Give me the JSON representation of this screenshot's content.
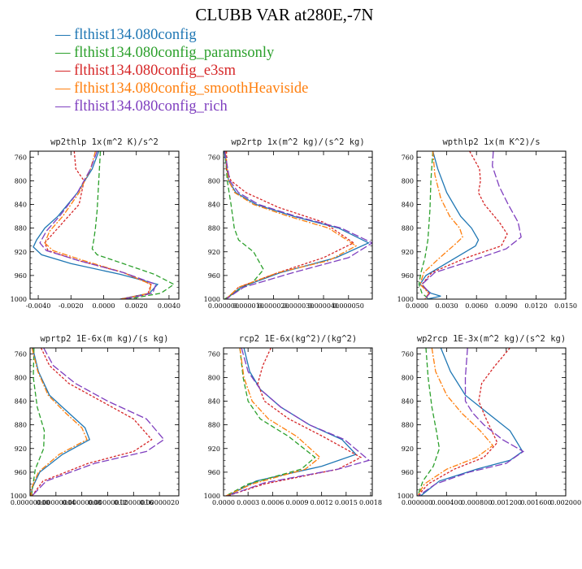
{
  "figure": {
    "title": "CLUBB VAR at280E,-7N"
  },
  "legend": [
    {
      "label": "flthist134.080config",
      "color": "#1f77b4"
    },
    {
      "label": "flthist134.080config_paramsonly",
      "color": "#2ca02c"
    },
    {
      "label": "flthist134.080config_e3sm",
      "color": "#d62728"
    },
    {
      "label": "flthist134.080config_smoothHeaviside",
      "color": "#ff7f0e"
    },
    {
      "label": "flthist134.080config_rich",
      "color": "#7f3fbf"
    }
  ],
  "chart_data": [
    {
      "type": "line",
      "title": "wp2thlp  1x(m^2 K)/s^2",
      "xlim": [
        -0.0045,
        0.0046
      ],
      "ylim": [
        1000,
        750
      ],
      "xticks": [
        -0.004,
        -0.002,
        0.0,
        0.002,
        0.004
      ],
      "xtick_labels": [
        "-0.0040",
        "-0.0020",
        "0.0000",
        "0.0020",
        "0.0040"
      ],
      "yticks": [
        760,
        800,
        840,
        880,
        920,
        960,
        1000
      ],
      "series": [
        {
          "name": "flthist134.080config",
          "x": [
            -0.0003,
            -0.0007,
            -0.0016,
            -0.0028,
            -0.0036,
            -0.0041,
            -0.0043,
            -0.0038,
            -0.002,
            0.001,
            0.0033,
            0.0028,
            0.001
          ],
          "y": [
            750,
            780,
            820,
            860,
            880,
            900,
            912,
            925,
            940,
            958,
            975,
            990,
            1000
          ]
        },
        {
          "name": "flthist134.080config_paramsonly",
          "x": [
            -0.0002,
            -0.0003,
            -0.0004,
            -0.0005,
            -0.0006,
            -0.0007,
            -0.0004,
            0.0012,
            0.0031,
            0.0043,
            0.0035,
            0.0015
          ],
          "y": [
            750,
            800,
            850,
            880,
            900,
            915,
            925,
            940,
            958,
            975,
            990,
            1000
          ]
        },
        {
          "name": "flthist134.080config_e3sm",
          "x": [
            -0.0018,
            -0.0017,
            -0.0012,
            -0.0015,
            -0.0028,
            -0.0036,
            -0.0034,
            -0.0015,
            0.0012,
            0.0029,
            0.0027,
            0.001
          ],
          "y": [
            750,
            780,
            800,
            840,
            880,
            905,
            918,
            935,
            955,
            975,
            992,
            1000
          ]
        },
        {
          "name": "flthist134.080config_smoothHeaviside",
          "x": [
            -0.0005,
            -0.0008,
            -0.0015,
            -0.0025,
            -0.0033,
            -0.0036,
            -0.0031,
            -0.0012,
            0.0012,
            0.0029,
            0.0028,
            0.0011
          ],
          "y": [
            750,
            780,
            820,
            860,
            885,
            905,
            918,
            935,
            955,
            975,
            990,
            1000
          ]
        },
        {
          "name": "flthist134.080config_rich",
          "x": [
            -0.0004,
            -0.0008,
            -0.0016,
            -0.0027,
            -0.0035,
            -0.0039,
            -0.0035,
            -0.0015,
            0.0012,
            0.0032,
            0.003,
            0.0012
          ],
          "y": [
            750,
            780,
            820,
            860,
            885,
            905,
            918,
            935,
            955,
            975,
            990,
            1000
          ]
        }
      ]
    },
    {
      "type": "line",
      "title": "wp2rtp  1x(m^2 kg)/(s^2 kg)",
      "xlim": [
        0,
        5.95e-05
      ],
      "ylim": [
        1000,
        750
      ],
      "xticks": [
        0,
        1e-05,
        2e-05,
        3e-05,
        4e-05,
        5e-05
      ],
      "xtick_labels": [
        "0.000000",
        "0.000010",
        "0.000020",
        "0.000030",
        "0.000040",
        "0.000050"
      ],
      "yticks": [
        760,
        800,
        840,
        880,
        920,
        960,
        1000
      ],
      "series": [
        {
          "name": "flthist134.080config",
          "x": [
            3e-07,
            2e-06,
            5e-06,
            1.3e-05,
            2.8e-05,
            4.6e-05,
            5.8e-05,
            4.5e-05,
            2.3e-05,
            7e-06,
            1e-06
          ],
          "y": [
            750,
            800,
            820,
            840,
            860,
            880,
            905,
            930,
            955,
            980,
            1000
          ]
        },
        {
          "name": "flthist134.080config_paramsonly",
          "x": [
            6e-07,
            1.5e-06,
            3e-06,
            4.3e-06,
            6e-06,
            1.2e-05,
            1.6e-05,
            1.2e-05,
            6e-06,
            2e-06,
            5e-07
          ],
          "y": [
            750,
            800,
            840,
            880,
            900,
            920,
            950,
            970,
            985,
            995,
            1000
          ]
        },
        {
          "name": "flthist134.080config_e3sm",
          "x": [
            1.2e-06,
            1.1e-06,
            3e-06,
            9e-06,
            2.2e-05,
            4e-05,
            5.2e-05,
            4e-05,
            2.2e-05,
            6e-06,
            1e-06
          ],
          "y": [
            750,
            780,
            800,
            820,
            845,
            870,
            905,
            930,
            955,
            980,
            1000
          ]
        },
        {
          "name": "flthist134.080config_smoothHeaviside",
          "x": [
            7e-07,
            2e-06,
            4.5e-06,
            1.2e-05,
            2.6e-05,
            4.2e-05,
            5.3e-05,
            4.2e-05,
            2.2e-05,
            6e-06,
            1e-06
          ],
          "y": [
            750,
            800,
            820,
            840,
            860,
            880,
            910,
            935,
            955,
            980,
            1000
          ]
        },
        {
          "name": "flthist134.080config_rich",
          "x": [
            5e-07,
            2.5e-06,
            6e-06,
            1.4e-05,
            2.9e-05,
            4.7e-05,
            5.95e-05,
            5e-05,
            2.8e-05,
            8e-06,
            1e-06
          ],
          "y": [
            750,
            800,
            820,
            840,
            860,
            880,
            905,
            930,
            955,
            980,
            1000
          ]
        }
      ]
    },
    {
      "type": "line",
      "title": "wpthlp2  1x(m K^2)/s",
      "xlim": [
        0,
        0.015
      ],
      "ylim": [
        1000,
        750
      ],
      "xticks": [
        0.0,
        0.003,
        0.006,
        0.009,
        0.012,
        0.015
      ],
      "xtick_labels": [
        "0.0000",
        "0.0030",
        "0.0060",
        "0.0090",
        "0.0120",
        "0.0150"
      ],
      "yticks": [
        760,
        800,
        840,
        880,
        920,
        960,
        1000
      ],
      "series": [
        {
          "name": "flthist134.080config",
          "x": [
            0.0016,
            0.0021,
            0.003,
            0.0044,
            0.0055,
            0.0062,
            0.0059,
            0.0034,
            0.0009,
            0.0003,
            0.0014,
            0.0024,
            0.001
          ],
          "y": [
            750,
            780,
            820,
            860,
            880,
            900,
            910,
            935,
            960,
            975,
            990,
            995,
            1000
          ]
        },
        {
          "name": "flthist134.080config_paramsonly",
          "x": [
            0.0016,
            0.0014,
            0.0013,
            0.0011,
            0.0008,
            0.0004,
            0.0002,
            0.0005,
            0.0012
          ],
          "y": [
            750,
            800,
            850,
            900,
            930,
            955,
            975,
            990,
            1000
          ]
        },
        {
          "name": "flthist134.080config_e3sm",
          "x": [
            0.0053,
            0.0063,
            0.0064,
            0.0062,
            0.0068,
            0.0083,
            0.0091,
            0.0085,
            0.005,
            0.0015,
            0.0005,
            0.0012,
            0.0008
          ],
          "y": [
            750,
            780,
            800,
            820,
            840,
            870,
            890,
            910,
            930,
            955,
            975,
            990,
            1000
          ]
        },
        {
          "name": "flthist134.080config_smoothHeaviside",
          "x": [
            0.0016,
            0.0018,
            0.0024,
            0.0033,
            0.0043,
            0.0046,
            0.004,
            0.0023,
            0.0007,
            0.0003,
            0.0012,
            0.0008
          ],
          "y": [
            750,
            790,
            830,
            860,
            880,
            895,
            905,
            930,
            955,
            975,
            990,
            1000
          ]
        },
        {
          "name": "flthist134.080config_rich",
          "x": [
            0.0077,
            0.0076,
            0.0083,
            0.0092,
            0.0102,
            0.0105,
            0.009,
            0.0055,
            0.0018,
            0.0005,
            0.0013,
            0.0008
          ],
          "y": [
            750,
            775,
            810,
            840,
            870,
            895,
            915,
            935,
            955,
            975,
            990,
            1000
          ]
        }
      ]
    },
    {
      "type": "line",
      "title": "wprtp2  1E-6x(m kg)/(s kg)",
      "xlim": [
        0,
        2.3e-07
      ],
      "ylim": [
        1000,
        750
      ],
      "xticks": [
        0,
        4e-08,
        8e-08,
        1.2e-07,
        1.6e-07,
        2e-07
      ],
      "xtick_labels": [
        "0.00000000",
        "0.00000004",
        "0.00000008",
        "0.00000012",
        "0.00000016",
        "0.00000020"
      ],
      "yticks": [
        760,
        800,
        840,
        880,
        920,
        960,
        1000
      ],
      "series": [
        {
          "name": "flthist134.080config",
          "x": [
            4e-09,
            1.3e-08,
            3e-08,
            6e-08,
            8.5e-08,
            9.2e-08,
            5e-08,
            1.5e-08,
            4e-09,
            1e-09
          ],
          "y": [
            750,
            790,
            830,
            860,
            885,
            905,
            930,
            960,
            985,
            1000
          ]
        },
        {
          "name": "flthist134.080config_paramsonly",
          "x": [
            6e-09,
            5e-09,
            1.1e-08,
            2.2e-08,
            2.1e-08,
            8e-09,
            2e-09
          ],
          "y": [
            750,
            800,
            850,
            890,
            920,
            955,
            1000
          ]
        },
        {
          "name": "flthist134.080config_e3sm",
          "x": [
            1.7e-08,
            3e-08,
            6e-08,
            1.1e-07,
            1.6e-07,
            1.88e-07,
            1.6e-07,
            9e-08,
            2e-08,
            3e-09
          ],
          "y": [
            750,
            780,
            810,
            840,
            870,
            905,
            925,
            945,
            975,
            1000
          ]
        },
        {
          "name": "flthist134.080config_smoothHeaviside",
          "x": [
            3e-09,
            1.2e-08,
            2.8e-08,
            5.5e-08,
            8e-08,
            8.8e-08,
            4.5e-08,
            1.3e-08,
            3e-09,
            1e-09
          ],
          "y": [
            750,
            790,
            830,
            860,
            885,
            905,
            930,
            960,
            985,
            1000
          ]
        },
        {
          "name": "flthist134.080config_rich",
          "x": [
            2.1e-08,
            3.6e-08,
            7e-08,
            1.2e-07,
            1.8e-07,
            2.07e-07,
            1.8e-07,
            1e-07,
            2.5e-08,
            3e-09
          ],
          "y": [
            750,
            780,
            810,
            840,
            870,
            905,
            925,
            945,
            975,
            1000
          ]
        }
      ]
    },
    {
      "type": "line",
      "title": "rcp2  1E-6x(kg^2)/(kg^2)",
      "xlim": [
        0,
        0.00182
      ],
      "ylim": [
        1000,
        750
      ],
      "xticks": [
        0.0,
        0.0003,
        0.0006,
        0.0009,
        0.0012,
        0.0015,
        0.0018
      ],
      "xtick_labels": [
        "0.0000",
        "0.0003",
        "0.0006",
        "0.0009",
        "0.0012",
        "0.0015",
        "0.0018"
      ],
      "yticks": [
        760,
        800,
        840,
        880,
        920,
        960,
        1000
      ],
      "series": [
        {
          "name": "flthist134.080config",
          "x": [
            0.00025,
            0.00032,
            0.00045,
            0.0007,
            0.00105,
            0.00145,
            0.00162,
            0.0012,
            0.0004,
            5e-05
          ],
          "y": [
            750,
            790,
            820,
            850,
            880,
            905,
            930,
            950,
            975,
            1000
          ]
        },
        {
          "name": "flthist134.080config_paramsonly",
          "x": [
            0.0002,
            0.00024,
            0.0003,
            0.00045,
            0.0008,
            0.00112,
            0.00095,
            0.0003,
            3e-05
          ],
          "y": [
            750,
            800,
            840,
            870,
            900,
            935,
            955,
            980,
            1000
          ]
        },
        {
          "name": "flthist134.080config_e3sm",
          "x": [
            0.00058,
            0.00048,
            0.00042,
            0.0005,
            0.0008,
            0.00122,
            0.00168,
            0.0014,
            0.0005,
            5e-05
          ],
          "y": [
            750,
            780,
            810,
            840,
            870,
            900,
            935,
            955,
            980,
            1000
          ]
        },
        {
          "name": "flthist134.080config_smoothHeaviside",
          "x": [
            0.0002,
            0.00025,
            0.00035,
            0.00055,
            0.0009,
            0.00118,
            0.001,
            0.00035,
            3e-05
          ],
          "y": [
            750,
            800,
            840,
            870,
            900,
            935,
            955,
            980,
            1000
          ]
        },
        {
          "name": "flthist134.080config_rich",
          "x": [
            0.00022,
            0.0003,
            0.00045,
            0.0007,
            0.00105,
            0.00148,
            0.00178,
            0.0014,
            0.0005,
            5e-05
          ],
          "y": [
            750,
            790,
            820,
            850,
            880,
            905,
            940,
            955,
            978,
            1000
          ]
        }
      ]
    },
    {
      "type": "line",
      "title": "wp2rcp  1E-3x(m^2 kg)/(s^2 kg)",
      "xlim": [
        0,
        0.002
      ],
      "ylim": [
        1000,
        750
      ],
      "xticks": [
        0,
        0.0004,
        0.0008,
        0.0012,
        0.0016,
        0.002
      ],
      "xtick_labels": [
        "0.000000",
        "0.000400",
        "0.000800",
        "0.001200",
        "0.001600",
        "0.002000"
      ],
      "yticks": [
        760,
        800,
        840,
        880,
        920,
        960,
        1000
      ],
      "series": [
        {
          "name": "flthist134.080config",
          "x": [
            0.00032,
            0.00045,
            0.00065,
            0.00095,
            0.00125,
            0.00142,
            0.00125,
            0.0008,
            0.0003,
            5e-05
          ],
          "y": [
            750,
            790,
            830,
            860,
            890,
            925,
            940,
            955,
            975,
            1000
          ]
        },
        {
          "name": "flthist134.080config_paramsonly",
          "x": [
            0.00012,
            0.00015,
            0.0002,
            0.00026,
            0.0003,
            0.00022,
            8e-05,
            1e-05
          ],
          "y": [
            750,
            800,
            850,
            890,
            920,
            950,
            975,
            1000
          ]
        },
        {
          "name": "flthist134.080config_e3sm",
          "x": [
            0.00125,
            0.00105,
            0.00087,
            0.00083,
            0.00093,
            0.00108,
            0.0009,
            0.0005,
            0.00015,
            1e-05
          ],
          "y": [
            750,
            780,
            810,
            840,
            870,
            910,
            935,
            955,
            980,
            1000
          ]
        },
        {
          "name": "flthist134.080config_smoothHeaviside",
          "x": [
            0.0002,
            0.00025,
            0.0004,
            0.0006,
            0.00085,
            0.00102,
            0.0008,
            0.0004,
            0.0001,
            1e-05
          ],
          "y": [
            750,
            790,
            830,
            860,
            890,
            915,
            935,
            955,
            980,
            1000
          ]
        },
        {
          "name": "flthist134.080config_rich",
          "x": [
            0.00068,
            0.00065,
            0.00065,
            0.00075,
            0.0009,
            0.00115,
            0.00143,
            0.0012,
            0.0007,
            0.00025,
            2e-05
          ],
          "y": [
            750,
            800,
            840,
            860,
            880,
            905,
            925,
            945,
            960,
            980,
            1000
          ]
        }
      ]
    }
  ]
}
